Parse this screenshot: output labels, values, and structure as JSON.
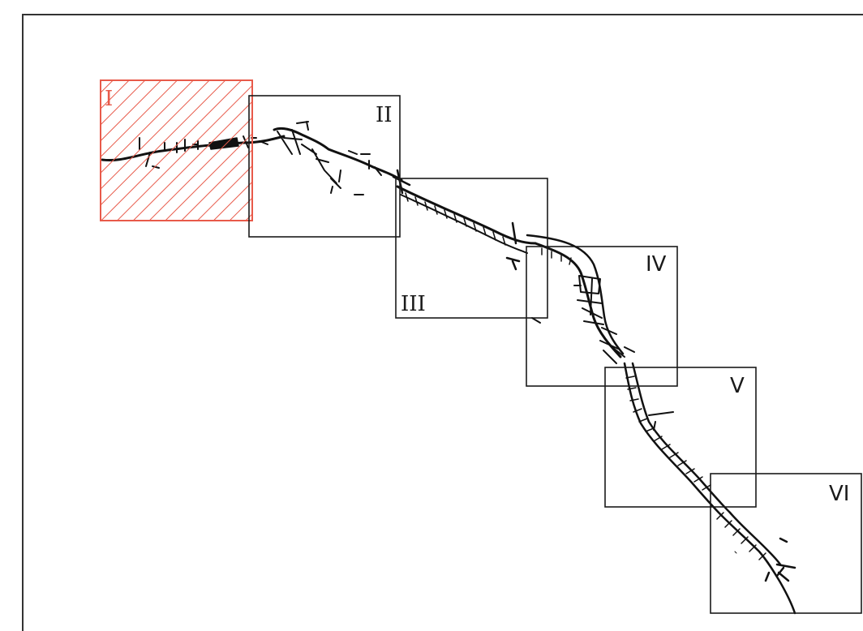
{
  "figure": {
    "highlight_color": "#e85a4a",
    "frame_color": "#1a1a1a",
    "route_color": "#111111",
    "frames": [
      {
        "id": "I",
        "label": "I",
        "highlighted": true
      },
      {
        "id": "II",
        "label": "II",
        "highlighted": false
      },
      {
        "id": "III",
        "label": "III",
        "highlighted": false
      },
      {
        "id": "IV",
        "label": "IV",
        "highlighted": false
      },
      {
        "id": "V",
        "label": "V",
        "highlighted": false
      },
      {
        "id": "VI",
        "label": "VI",
        "highlighted": false
      }
    ]
  }
}
